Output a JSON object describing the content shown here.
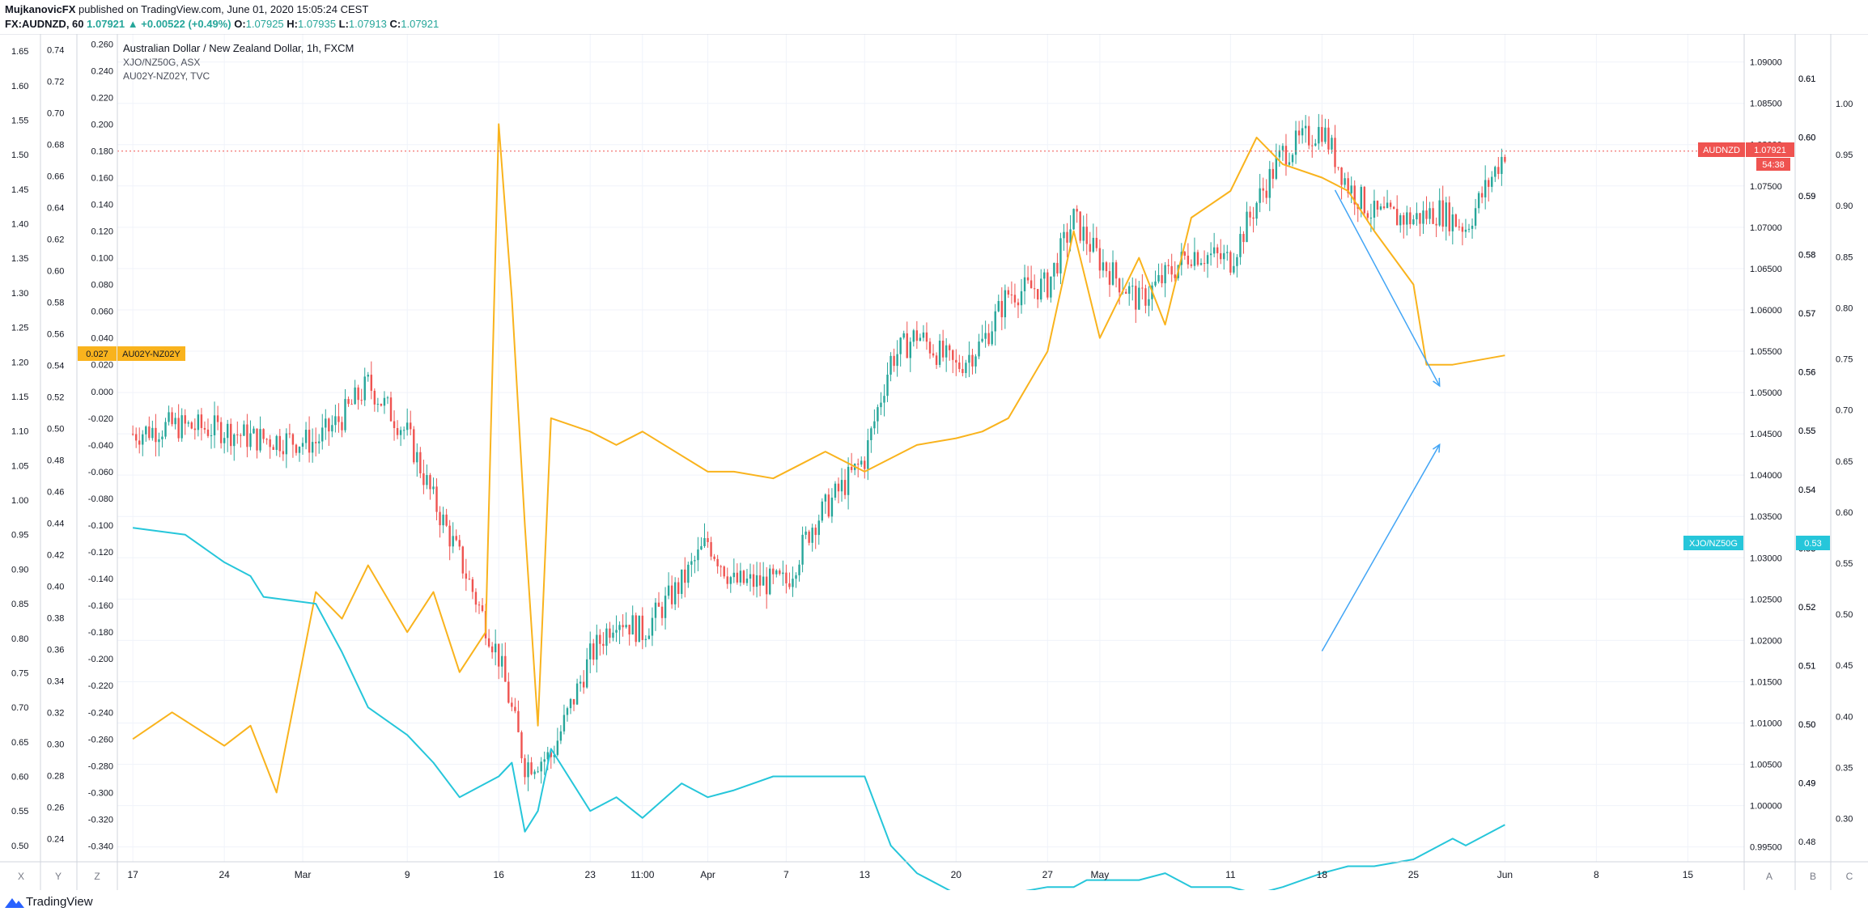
{
  "header": {
    "author": "MujkanovicFX",
    "published_text": "published on TradingView.com, June 01, 2020 15:05:24 CEST",
    "symbol": "FX:AUDNZD, 60",
    "last": "1.07921",
    "change_arrow": "▲",
    "change": "+0.00522 (+0.49%)",
    "o_label": "O:",
    "o": "1.07925",
    "h_label": "H:",
    "h": "1.07935",
    "l_label": "L:",
    "l": "1.07913",
    "c_label": "C:",
    "c": "1.07921"
  },
  "legend": {
    "main": "Australian Dollar / New Zealand Dollar, 1h, FXCM",
    "second": "XJO/NZ50G, ASX",
    "third": "AU02Y-NZ02Y, TVC"
  },
  "badges": {
    "audnzd_name": "AUDNZD",
    "audnzd_value": "1.07921",
    "countdown": "54:38",
    "xjo_name": "XJO/NZ50G",
    "xjo_value": "0.53",
    "spread_value": "0.027",
    "spread_name": "AU02Y-NZ02Y"
  },
  "scale_buttons": {
    "x": "X",
    "y": "Y",
    "z": "Z",
    "a": "A",
    "b": "B",
    "c": "C"
  },
  "footer": {
    "logo_text": "TradingView",
    "logo_icon": "tradingview-logo-icon"
  },
  "colors": {
    "xjo": "#26c6da",
    "spread": "#f9b31d",
    "up": "#26a69a",
    "down": "#ef5350",
    "price_line": "#ef5350",
    "arrow": "#42a5f5",
    "grid": "#f0f3fa"
  },
  "chart_data": [
    {
      "type": "line",
      "title": "Australian Dollar / New Zealand Dollar, 1h, FXCM",
      "series": [
        {
          "name": "Australian Dollar / New Zealand Dollar, 1h, FXCM",
          "style": "candlestick",
          "x": [
            "Feb 17",
            "Feb 20",
            "Feb 24",
            "Feb 26",
            "Mar 2",
            "Mar 4",
            "Mar 6",
            "Mar 9",
            "Mar 11",
            "Mar 13",
            "Mar 16",
            "Mar 18",
            "Mar 20",
            "Mar 23",
            "Mar 25",
            "Mar 27",
            "Mar 30",
            "Apr 1",
            "Apr 3",
            "Apr 7",
            "Apr 9",
            "Apr 13",
            "Apr 15",
            "Apr 17",
            "Apr 20",
            "Apr 22",
            "Apr 24",
            "Apr 27",
            "Apr 29",
            "May 1",
            "May 4",
            "May 6",
            "May 8",
            "May 11",
            "May 13",
            "May 15",
            "May 18",
            "May 20",
            "May 22",
            "May 25",
            "May 27",
            "May 29",
            "Jun 1"
          ],
          "values": [
            1.045,
            1.046,
            1.0455,
            1.0445,
            1.044,
            1.047,
            1.051,
            1.045,
            1.037,
            1.03,
            1.018,
            1.005,
            1.006,
            1.018,
            1.023,
            1.021,
            1.027,
            1.032,
            1.027,
            1.027,
            1.034,
            1.042,
            1.054,
            1.057,
            1.053,
            1.056,
            1.062,
            1.063,
            1.071,
            1.066,
            1.061,
            1.064,
            1.067,
            1.066,
            1.073,
            1.079,
            1.082,
            1.075,
            1.0715,
            1.071,
            1.072,
            1.07,
            1.0792
          ]
        },
        {
          "name": "XJO/NZ50G, ASX",
          "x": [
            "Feb 17",
            "Feb 21",
            "Feb 24",
            "Feb 26",
            "Feb 27",
            "Mar 2",
            "Mar 4",
            "Mar 6",
            "Mar 9",
            "Mar 11",
            "Mar 13",
            "Mar 16",
            "Mar 17",
            "Mar 18",
            "Mar 19",
            "Mar 20",
            "Mar 23",
            "Mar 25",
            "Mar 27",
            "Mar 30",
            "Apr 1",
            "Apr 3",
            "Apr 6",
            "Apr 8",
            "Apr 13",
            "Apr 15",
            "Apr 17",
            "Apr 20",
            "Apr 22",
            "Apr 24",
            "Apr 27",
            "Apr 29",
            "Apr 30",
            "May 4",
            "May 6",
            "May 8",
            "May 11",
            "May 13",
            "May 15",
            "May 18",
            "May 20",
            "May 22",
            "May 25",
            "May 27",
            "May 28",
            "May 29",
            "Jun 1"
          ],
          "values": [
            0.96,
            0.95,
            0.91,
            0.89,
            0.86,
            0.85,
            0.78,
            0.7,
            0.66,
            0.62,
            0.57,
            0.6,
            0.62,
            0.52,
            0.55,
            0.64,
            0.55,
            0.57,
            0.54,
            0.59,
            0.57,
            0.58,
            0.6,
            0.6,
            0.6,
            0.5,
            0.46,
            0.43,
            0.43,
            0.43,
            0.44,
            0.44,
            0.45,
            0.45,
            0.46,
            0.44,
            0.44,
            0.43,
            0.44,
            0.46,
            0.47,
            0.47,
            0.48,
            0.5,
            0.51,
            0.5,
            0.53
          ]
        },
        {
          "name": "AU02Y-NZ02Y, TVC",
          "x": [
            "Feb 17",
            "Feb 20",
            "Feb 24",
            "Feb 26",
            "Feb 28",
            "Mar 2",
            "Mar 4",
            "Mar 6",
            "Mar 9",
            "Mar 11",
            "Mar 13",
            "Mar 15",
            "Mar 16",
            "Mar 17",
            "Mar 18",
            "Mar 19",
            "Mar 20",
            "Mar 23",
            "Mar 25",
            "Mar 27",
            "Apr 1",
            "Apr 3",
            "Apr 6",
            "Apr 8",
            "Apr 10",
            "Apr 13",
            "Apr 15",
            "Apr 17",
            "Apr 20",
            "Apr 22",
            "Apr 24",
            "Apr 27",
            "Apr 29",
            "May 1",
            "May 4",
            "May 6",
            "May 8",
            "May 11",
            "May 13",
            "May 15",
            "May 18",
            "May 20",
            "May 22",
            "May 25",
            "May 26",
            "May 28",
            "Jun 1"
          ],
          "values": [
            -0.26,
            -0.24,
            -0.265,
            -0.25,
            -0.3,
            -0.15,
            -0.17,
            -0.13,
            -0.18,
            -0.15,
            -0.21,
            -0.18,
            0.2,
            0.07,
            -0.1,
            -0.25,
            -0.02,
            -0.03,
            -0.04,
            -0.03,
            -0.06,
            -0.06,
            -0.065,
            -0.055,
            -0.045,
            -0.06,
            -0.05,
            -0.04,
            -0.035,
            -0.03,
            -0.02,
            0.03,
            0.12,
            0.04,
            0.1,
            0.05,
            0.13,
            0.15,
            0.19,
            0.17,
            0.16,
            0.15,
            0.12,
            0.08,
            0.02,
            0.02,
            0.027
          ]
        }
      ],
      "y_axes": [
        {
          "series": "AU02Y-NZ02Y, TVC",
          "side": "left",
          "range": [
            -0.35,
            0.265
          ],
          "ticks": [
            "0.260",
            "0.240",
            "0.220",
            "0.200",
            "0.180",
            "0.160",
            "0.140",
            "0.120",
            "0.100",
            "0.080",
            "0.060",
            "0.040",
            "0.020",
            "0.000",
            "-0.020",
            "-0.040",
            "-0.060",
            "-0.080",
            "-0.100",
            "-0.120",
            "-0.140",
            "-0.160",
            "-0.180",
            "-0.200",
            "-0.220",
            "-0.240",
            "-0.260",
            "-0.280",
            "-0.300",
            "-0.320",
            "-0.340"
          ]
        },
        {
          "series": "XJO/NZ50G, ASX",
          "side": "left-outer",
          "range": [
            0.48,
            1.67
          ],
          "ticks": [
            "1.65",
            "1.60",
            "1.55",
            "1.50",
            "1.45",
            "1.40",
            "1.35",
            "1.30",
            "1.25",
            "1.20",
            "1.15",
            "1.10",
            "1.05",
            "1.00",
            "0.95",
            "0.90",
            "0.85",
            "0.80",
            "0.75",
            "0.70",
            "0.65",
            "0.60",
            "0.55",
            "0.50"
          ]
        },
        {
          "side": "left-mid",
          "ticks": [
            "0.74",
            "0.72",
            "0.70",
            "0.68",
            "0.66",
            "0.64",
            "0.62",
            "0.60",
            "0.58",
            "0.56",
            "0.54",
            "0.52",
            "0.50",
            "0.48",
            "0.46",
            "0.44",
            "0.42",
            "0.40",
            "0.38",
            "0.36",
            "0.34",
            "0.32",
            "0.30",
            "0.28",
            "0.26",
            "0.24"
          ]
        },
        {
          "series": "Australian Dollar / New Zealand Dollar, 1h, FXCM",
          "side": "right",
          "range": [
            0.9935,
            1.093
          ],
          "ticks": [
            "1.09000",
            "1.08500",
            "1.08000",
            "1.07500",
            "1.07000",
            "1.06500",
            "1.06000",
            "1.05500",
            "1.05000",
            "1.04500",
            "1.04000",
            "1.03500",
            "1.03000",
            "1.02500",
            "1.02000",
            "1.01500",
            "1.01000",
            "1.00500",
            "1.00000",
            "0.99500"
          ]
        },
        {
          "side": "right-mid",
          "ticks": [
            "0.61",
            "0.61",
            "0.60",
            "0.60",
            "0.59",
            "0.59",
            "0.58",
            "0.58",
            "0.57",
            "0.57",
            "0.56",
            "0.56",
            "0.55",
            "0.55",
            "0.54",
            "0.54",
            "0.53",
            "0.53",
            "0.52",
            "0.52",
            "0.51",
            "0.51",
            "0.50",
            "0.50",
            "0.49",
            "0.49",
            "0.48"
          ]
        },
        {
          "side": "right-outer",
          "ticks": [
            "1.00",
            "0.95",
            "0.90",
            "0.85",
            "0.80",
            "0.75",
            "0.70",
            "0.65",
            "0.60",
            "0.55",
            "0.50",
            "0.45",
            "0.40",
            "0.35",
            "0.30"
          ]
        }
      ],
      "x_ticks": [
        "17",
        "24",
        "Mar",
        "9",
        "16",
        "23",
        "11:00",
        "Apr",
        "7",
        "13",
        "20",
        "27",
        "May",
        "11",
        "18",
        "25",
        "Jun",
        "8",
        "15"
      ],
      "annotations": [
        {
          "type": "arrow",
          "from": "May 19",
          "to": "May 27",
          "direction": "down"
        },
        {
          "type": "arrow",
          "from": "May 18",
          "to": "May 27",
          "direction": "up"
        },
        {
          "type": "horizontal-line",
          "value": 1.07921
        }
      ],
      "grid": true
    }
  ]
}
